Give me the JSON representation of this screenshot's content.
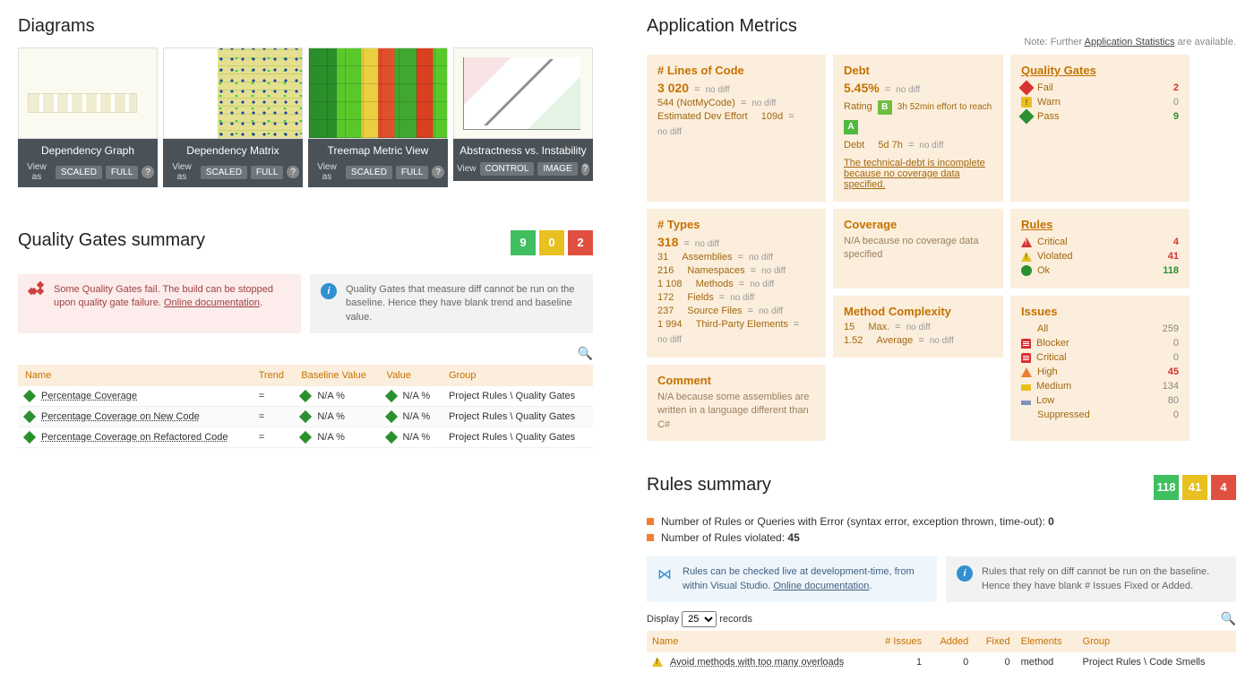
{
  "diagrams": {
    "title": "Diagrams",
    "view_as_label": "View as",
    "btn_scaled": "SCALED",
    "btn_full": "FULL",
    "btn_control": "CONTROL",
    "btn_image": "IMAGE",
    "cards": [
      {
        "title": "Dependency Graph",
        "mode": "std"
      },
      {
        "title": "Dependency Matrix",
        "mode": "std"
      },
      {
        "title": "Treemap Metric View",
        "mode": "std"
      },
      {
        "title": "Abstractness vs. Instability",
        "mode": "zone"
      }
    ]
  },
  "metrics": {
    "title": "Application Metrics",
    "note_prefix": "Note: Further ",
    "note_link": "Application Statistics",
    "note_suffix": " are available.",
    "lines": {
      "title": "# Lines of Code",
      "value": "3 020",
      "not_my_code": "544   (NotMyCode)",
      "dev_effort_label": "Estimated Dev Effort",
      "dev_effort_val": "109d"
    },
    "types": {
      "title": "# Types",
      "value": "318",
      "rows": [
        {
          "n": "31",
          "label": "Assemblies"
        },
        {
          "n": "216",
          "label": "Namespaces"
        },
        {
          "n": "1 108",
          "label": "Methods"
        },
        {
          "n": "172",
          "label": "Fields"
        },
        {
          "n": "237",
          "label": "Source Files"
        },
        {
          "n": "1 994",
          "label": "Third-Party Elements"
        }
      ]
    },
    "debt": {
      "title": "Debt",
      "value": "5.45%",
      "rating_label": "Rating",
      "rating": "B",
      "effort_text": "3h 52min effort to reach",
      "effort_target": "A",
      "debt_label": "Debt",
      "debt_val": "5d 7h",
      "warn": "The technical-debt is incomplete because no coverage data specified."
    },
    "coverage": {
      "title": "Coverage",
      "text": "N/A because no coverage data specified"
    },
    "complexity": {
      "title": "Method Complexity",
      "max_n": "15",
      "max_label": "Max.",
      "avg_n": "1.52",
      "avg_label": "Average"
    },
    "comment": {
      "title": "Comment",
      "text": "N/A because some assemblies are written in a language different than C#"
    },
    "nodiff": "no diff",
    "eq": "="
  },
  "side": {
    "gates": {
      "title": "Quality Gates",
      "rows": [
        {
          "icon": "fail",
          "label": "Fail",
          "val": "2",
          "cls": "red"
        },
        {
          "icon": "warn",
          "label": "Warn",
          "val": "0",
          "cls": "grey"
        },
        {
          "icon": "pass",
          "label": "Pass",
          "val": "9",
          "cls": "green"
        }
      ]
    },
    "rules": {
      "title": "Rules",
      "rows": [
        {
          "icon": "crit",
          "label": "Critical",
          "val": "4",
          "cls": "red"
        },
        {
          "icon": "viol",
          "label": "Violated",
          "val": "41",
          "cls": "red"
        },
        {
          "icon": "ok",
          "label": "Ok",
          "val": "118",
          "cls": "green"
        }
      ]
    },
    "issues": {
      "title": "Issues",
      "rows": [
        {
          "icon": "",
          "label": "All",
          "val": "259",
          "cls": "grey"
        },
        {
          "icon": "blocker",
          "label": "Blocker",
          "val": "0",
          "cls": "grey"
        },
        {
          "icon": "blocker",
          "label": "Critical",
          "val": "0",
          "cls": "grey"
        },
        {
          "icon": "high",
          "label": "High",
          "val": "45",
          "cls": "red"
        },
        {
          "icon": "med",
          "label": "Medium",
          "val": "134",
          "cls": "grey"
        },
        {
          "icon": "low",
          "label": "Low",
          "val": "80",
          "cls": "grey"
        },
        {
          "icon": "",
          "label": "Suppressed",
          "val": "0",
          "cls": "grey"
        }
      ]
    }
  },
  "qg_summary": {
    "title": "Quality Gates summary",
    "badges": {
      "green": "9",
      "yellow": "0",
      "red": "2"
    },
    "alert_fail": "Some Quality Gates fail. The build can be stopped upon quality gate failure. ",
    "alert_fail_link": "Online documentation",
    "alert_diff": "Quality Gates that measure diff cannot be run on the baseline. Hence they have blank trend and baseline value.",
    "columns": {
      "name": "Name",
      "trend": "Trend",
      "baseline": "Baseline Value",
      "value": "Value",
      "group": "Group"
    },
    "rows": [
      {
        "name": "Percentage Coverage",
        "trend": "=",
        "baseline": "N/A %",
        "value": "N/A %",
        "group": "Project Rules \\ Quality Gates"
      },
      {
        "name": "Percentage Coverage on New Code",
        "trend": "=",
        "baseline": "N/A %",
        "value": "N/A %",
        "group": "Project Rules \\ Quality Gates"
      },
      {
        "name": "Percentage Coverage on Refactored Code",
        "trend": "=",
        "baseline": "N/A %",
        "value": "N/A %",
        "group": "Project Rules \\ Quality Gates"
      }
    ]
  },
  "rules_summary": {
    "title": "Rules summary",
    "badges": {
      "green": "118",
      "yellow": "41",
      "red": "4"
    },
    "line1_prefix": "Number of Rules or Queries with Error (syntax error, exception thrown, time-out): ",
    "line1_val": "0",
    "line2_prefix": "Number of Rules violated: ",
    "line2_val": "45",
    "info_vs": "Rules can be checked live at development-time, from within Visual Studio. ",
    "info_vs_link": "Online documentation",
    "info_diff": "Rules that rely on diff cannot be run on the baseline. Hence they have blank # Issues Fixed or Added.",
    "display_label": "Display",
    "display_value": "25",
    "records_label": "records",
    "columns": {
      "name": "Name",
      "issues": "# Issues",
      "added": "Added",
      "fixed": "Fixed",
      "elements": "Elements",
      "group": "Group"
    },
    "rows": [
      {
        "name": "Avoid methods with too many overloads",
        "issues": "1",
        "added": "0",
        "fixed": "0",
        "elements": "method",
        "group": "Project Rules \\ Code Smells"
      }
    ]
  }
}
